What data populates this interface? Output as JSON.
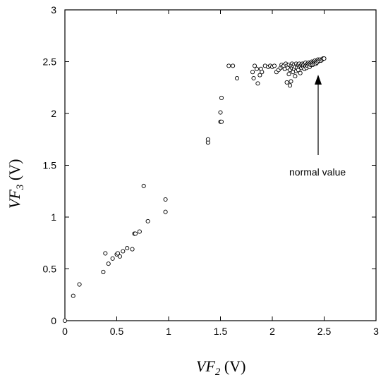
{
  "chart_data": {
    "type": "scatter",
    "xlabel": {
      "main": "VF",
      "sub": "2",
      "unit": " (V)"
    },
    "ylabel": {
      "main": "VF",
      "sub": "3",
      "unit": " (V)"
    },
    "xlim": [
      0,
      3
    ],
    "ylim": [
      0,
      3
    ],
    "xticks": [
      "0",
      "0.5",
      "1",
      "1.5",
      "2",
      "2.5",
      "3"
    ],
    "yticks": [
      "0",
      "0.5",
      "1",
      "1.5",
      "2",
      "2.5",
      "3"
    ],
    "grid": false,
    "legend": "none",
    "annotation": {
      "text": "normal value",
      "points_to": [
        2.46,
        2.49
      ]
    },
    "points": [
      [
        0.0,
        0.0
      ],
      [
        0.08,
        0.24
      ],
      [
        0.14,
        0.35
      ],
      [
        0.37,
        0.47
      ],
      [
        0.39,
        0.65
      ],
      [
        0.42,
        0.55
      ],
      [
        0.46,
        0.6
      ],
      [
        0.5,
        0.64
      ],
      [
        0.51,
        0.65
      ],
      [
        0.53,
        0.62
      ],
      [
        0.56,
        0.67
      ],
      [
        0.6,
        0.7
      ],
      [
        0.65,
        0.69
      ],
      [
        0.67,
        0.84
      ],
      [
        0.68,
        0.84
      ],
      [
        0.72,
        0.86
      ],
      [
        0.76,
        1.3
      ],
      [
        0.8,
        0.96
      ],
      [
        0.97,
        1.05
      ],
      [
        0.97,
        1.17
      ],
      [
        1.38,
        1.72
      ],
      [
        1.38,
        1.75
      ],
      [
        1.5,
        1.92
      ],
      [
        1.51,
        1.92
      ],
      [
        1.5,
        2.01
      ],
      [
        1.51,
        2.15
      ],
      [
        1.58,
        2.46
      ],
      [
        1.62,
        2.46
      ],
      [
        1.66,
        2.34
      ],
      [
        1.81,
        2.4
      ],
      [
        1.82,
        2.34
      ],
      [
        1.83,
        2.46
      ],
      [
        1.85,
        2.43
      ],
      [
        1.86,
        2.29
      ],
      [
        1.88,
        2.37
      ],
      [
        1.89,
        2.43
      ],
      [
        1.9,
        2.4
      ],
      [
        1.93,
        2.46
      ],
      [
        1.96,
        2.45
      ],
      [
        1.98,
        2.46
      ],
      [
        2.0,
        2.45
      ],
      [
        2.02,
        2.46
      ],
      [
        2.04,
        2.4
      ],
      [
        2.06,
        2.42
      ],
      [
        2.08,
        2.44
      ],
      [
        2.09,
        2.47
      ],
      [
        2.1,
        2.45
      ],
      [
        2.11,
        2.46
      ],
      [
        2.12,
        2.43
      ],
      [
        2.13,
        2.48
      ],
      [
        2.14,
        2.3
      ],
      [
        2.14,
        2.46
      ],
      [
        2.15,
        2.44
      ],
      [
        2.16,
        2.47
      ],
      [
        2.16,
        2.38
      ],
      [
        2.17,
        2.42
      ],
      [
        2.17,
        2.27
      ],
      [
        2.18,
        2.46
      ],
      [
        2.18,
        2.31
      ],
      [
        2.19,
        2.44
      ],
      [
        2.19,
        2.48
      ],
      [
        2.2,
        2.4
      ],
      [
        2.2,
        2.46
      ],
      [
        2.21,
        2.43
      ],
      [
        2.21,
        2.47
      ],
      [
        2.22,
        2.45
      ],
      [
        2.22,
        2.36
      ],
      [
        2.23,
        2.48
      ],
      [
        2.23,
        2.41
      ],
      [
        2.24,
        2.46
      ],
      [
        2.24,
        2.44
      ],
      [
        2.25,
        2.47
      ],
      [
        2.25,
        2.42
      ],
      [
        2.26,
        2.45
      ],
      [
        2.26,
        2.48
      ],
      [
        2.27,
        2.46
      ],
      [
        2.27,
        2.39
      ],
      [
        2.28,
        2.47
      ],
      [
        2.28,
        2.44
      ],
      [
        2.29,
        2.46
      ],
      [
        2.29,
        2.48
      ],
      [
        2.3,
        2.45
      ],
      [
        2.3,
        2.47
      ],
      [
        2.31,
        2.43
      ],
      [
        2.31,
        2.48
      ],
      [
        2.32,
        2.46
      ],
      [
        2.32,
        2.49
      ],
      [
        2.33,
        2.47
      ],
      [
        2.33,
        2.44
      ],
      [
        2.34,
        2.48
      ],
      [
        2.34,
        2.46
      ],
      [
        2.35,
        2.49
      ],
      [
        2.35,
        2.47
      ],
      [
        2.36,
        2.48
      ],
      [
        2.36,
        2.45
      ],
      [
        2.37,
        2.49
      ],
      [
        2.37,
        2.47
      ],
      [
        2.38,
        2.48
      ],
      [
        2.38,
        2.5
      ],
      [
        2.39,
        2.49
      ],
      [
        2.39,
        2.47
      ],
      [
        2.4,
        2.5
      ],
      [
        2.4,
        2.48
      ],
      [
        2.41,
        2.49
      ],
      [
        2.41,
        2.51
      ],
      [
        2.42,
        2.5
      ],
      [
        2.42,
        2.48
      ],
      [
        2.43,
        2.51
      ],
      [
        2.43,
        2.49
      ],
      [
        2.44,
        2.52
      ],
      [
        2.44,
        2.5
      ],
      [
        2.45,
        2.51
      ],
      [
        2.46,
        2.52
      ],
      [
        2.47,
        2.51
      ],
      [
        2.48,
        2.52
      ],
      [
        2.49,
        2.53
      ],
      [
        2.5,
        2.53
      ]
    ]
  }
}
